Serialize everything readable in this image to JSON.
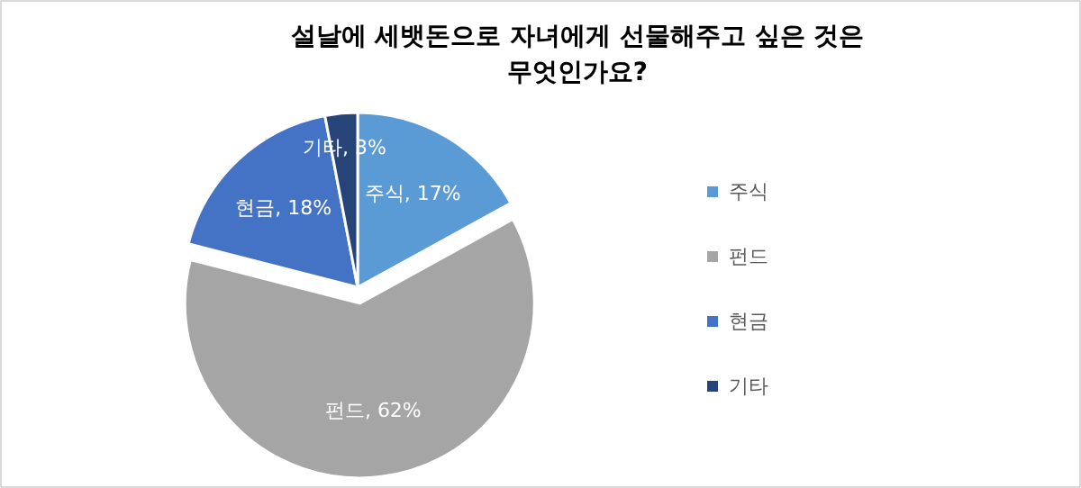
{
  "chart_data": {
    "type": "pie",
    "title": "설날에 세뱃돈으로 자녀에게 선물해주고 싶은 것은\n무엇인가요?",
    "categories": [
      "주식",
      "펀드",
      "현금",
      "기타"
    ],
    "values": [
      17,
      62,
      18,
      3
    ],
    "colors": [
      "#5b9bd5",
      "#a5a5a5",
      "#4472c4",
      "#264478"
    ],
    "value_labels": [
      "주식, 17%",
      "펀드, 62%",
      "현금, 18%",
      "기타, 3%"
    ],
    "legend": "right"
  }
}
